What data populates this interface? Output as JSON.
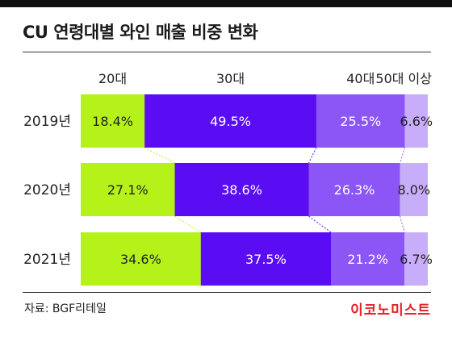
{
  "header": {
    "title": "CU 연령대별 와인 매출 비중 변화"
  },
  "footer": {
    "source": "자료: BGF리테일",
    "brand": "이코노미스트"
  },
  "chart_data": {
    "type": "bar",
    "stacked": true,
    "orientation": "horizontal",
    "title": "CU 연령대별 와인 매출 비중 변화",
    "categories": [
      "2019년",
      "2020년",
      "2021년"
    ],
    "series": [
      {
        "name": "20대",
        "values": [
          18.4,
          27.1,
          34.6
        ],
        "labels": [
          "18.4%",
          "27.1%",
          "34.6%"
        ],
        "color": "#b5f21a",
        "text_color": "#222222"
      },
      {
        "name": "30대",
        "values": [
          49.5,
          38.6,
          37.5
        ],
        "labels": [
          "49.5%",
          "38.6%",
          "37.5%"
        ],
        "color": "#5a0df2",
        "text_color": "#ffffff"
      },
      {
        "name": "40대",
        "values": [
          25.5,
          26.3,
          21.2
        ],
        "labels": [
          "25.5%",
          "26.3%",
          "21.2%"
        ],
        "color": "#8b56f5",
        "text_color": "#ffffff"
      },
      {
        "name": "50대 이상",
        "values": [
          6.6,
          8.0,
          6.7
        ],
        "labels": [
          "6.6%",
          "8.0%",
          "6.7%"
        ],
        "color": "#c8aefa",
        "text_color": "#222222"
      }
    ],
    "xlim": [
      0,
      100
    ],
    "legend": "top",
    "grid": false
  }
}
